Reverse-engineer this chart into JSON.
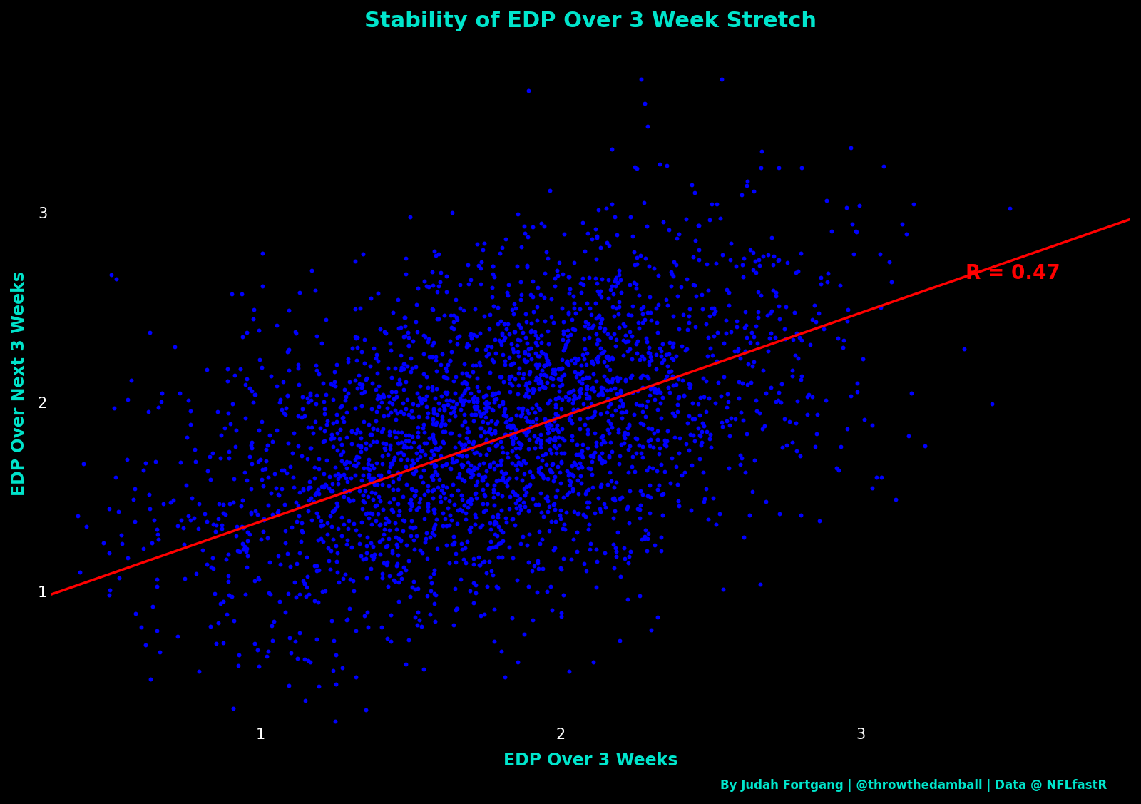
{
  "title": "Stability of EDP Over 3 Week Stretch",
  "xlabel": "EDP Over 3 Weeks",
  "ylabel": "EDP Over Next 3 Weeks",
  "background_color": "#000000",
  "title_color": "#00e5cc",
  "label_color": "#00e5cc",
  "tick_color": "#ffffff",
  "scatter_color": "#0000ff",
  "line_color": "#ff0000",
  "r_value": 0.47,
  "r_label": "R = 0.47",
  "credit_text": "By Judah Fortgang | @throwthedamball | Data @ NFLfastR",
  "xlim": [
    0.3,
    3.9
  ],
  "ylim": [
    0.3,
    3.9
  ],
  "xticks": [
    1,
    2,
    3
  ],
  "yticks": [
    1,
    2,
    3
  ],
  "n_points": 2800,
  "seed": 42,
  "x_mean": 1.78,
  "y_mean": 1.85,
  "x_std": 0.52,
  "y_std": 0.52,
  "scatter_alpha": 1.0,
  "scatter_size": 18,
  "title_fontsize": 22,
  "label_fontsize": 17,
  "tick_fontsize": 15,
  "r_fontsize": 20,
  "credit_fontsize": 12,
  "line_x_start": 0.3,
  "line_x_end": 3.9,
  "line_intercept": 0.82,
  "line_slope": 0.55
}
